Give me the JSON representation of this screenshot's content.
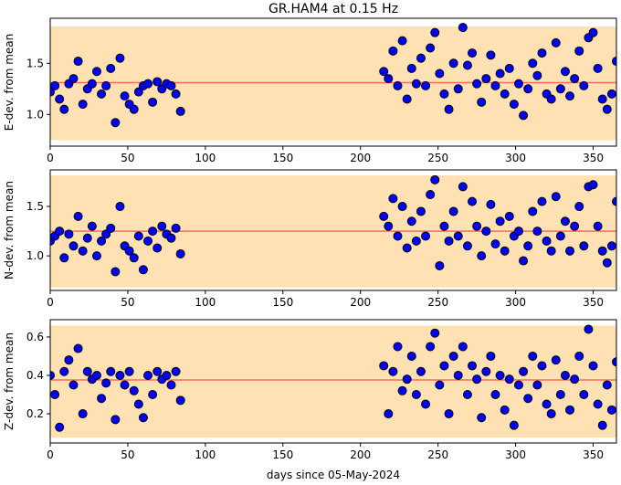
{
  "title": "GR.HAM4 at 0.15 Hz",
  "xlabel": "days since 05-May-2024",
  "chart_data": [
    {
      "type": "scatter",
      "ylabel": "E-dev. from mean",
      "color": "#0000ff",
      "edgecolor": "#000000",
      "band_color": "#ffe1b3",
      "mean_color": "#ff6b5e",
      "xlim": [
        0,
        365
      ],
      "xticks": [
        0,
        50,
        100,
        150,
        200,
        250,
        300,
        350
      ],
      "ylim": [
        0.69,
        1.94
      ],
      "yticks": [
        {
          "value": 1,
          "label": "1.0"
        },
        1.5
      ],
      "band": [
        0.75,
        1.86
      ],
      "mean": 1.31,
      "x": [
        0,
        3,
        6,
        9,
        12,
        15,
        18,
        21,
        24,
        27,
        30,
        33,
        36,
        39,
        42,
        45,
        48,
        51,
        54,
        57,
        60,
        63,
        66,
        69,
        72,
        75,
        78,
        81,
        84,
        215,
        218,
        221,
        224,
        227,
        230,
        233,
        236,
        239,
        242,
        245,
        248,
        251,
        254,
        257,
        260,
        263,
        266,
        269,
        272,
        275,
        278,
        281,
        284,
        287,
        290,
        293,
        296,
        299,
        302,
        305,
        308,
        311,
        314,
        317,
        320,
        323,
        326,
        329,
        332,
        335,
        338,
        341,
        344,
        347,
        350,
        353,
        356,
        359,
        362,
        365
      ],
      "values": [
        1.22,
        1.28,
        1.15,
        1.05,
        1.3,
        1.35,
        1.52,
        1.1,
        1.25,
        1.3,
        1.42,
        1.2,
        1.28,
        1.45,
        0.92,
        1.55,
        1.18,
        1.1,
        1.05,
        1.22,
        1.28,
        1.3,
        1.12,
        1.32,
        1.25,
        1.3,
        1.28,
        1.2,
        1.03,
        1.42,
        1.35,
        1.62,
        1.28,
        1.72,
        1.15,
        1.45,
        1.3,
        1.55,
        1.28,
        1.65,
        1.8,
        1.4,
        1.2,
        1.05,
        1.5,
        1.25,
        1.85,
        1.48,
        1.6,
        1.3,
        1.12,
        1.35,
        1.58,
        1.28,
        1.4,
        1.2,
        1.45,
        1.1,
        1.3,
        0.99,
        1.25,
        1.5,
        1.38,
        1.6,
        1.2,
        1.15,
        1.7,
        1.25,
        1.42,
        1.18,
        1.35,
        1.62,
        1.28,
        1.75,
        1.8,
        1.45,
        1.15,
        1.05,
        1.2,
        1.52
      ]
    },
    {
      "type": "scatter",
      "ylabel": "N-dev. from mean",
      "color": "#0000ff",
      "edgecolor": "#000000",
      "band_color": "#ffe1b3",
      "mean_color": "#ff6b5e",
      "xlim": [
        0,
        365
      ],
      "xticks": [
        0,
        50,
        100,
        150,
        200,
        250,
        300,
        350
      ],
      "ylim": [
        0.65,
        1.87
      ],
      "yticks": [
        {
          "value": 1,
          "label": "1.0"
        },
        1.5
      ],
      "band": [
        0.68,
        1.815
      ],
      "mean": 1.25,
      "x": [
        0,
        3,
        6,
        9,
        12,
        15,
        18,
        21,
        24,
        27,
        30,
        33,
        36,
        39,
        42,
        45,
        48,
        51,
        54,
        57,
        60,
        63,
        66,
        69,
        72,
        75,
        78,
        81,
        84,
        215,
        218,
        221,
        224,
        227,
        230,
        233,
        236,
        239,
        242,
        245,
        248,
        251,
        254,
        257,
        260,
        263,
        266,
        269,
        272,
        275,
        278,
        281,
        284,
        287,
        290,
        293,
        296,
        299,
        302,
        305,
        308,
        311,
        314,
        317,
        320,
        323,
        326,
        329,
        332,
        335,
        338,
        341,
        344,
        347,
        350,
        353,
        356,
        359,
        362,
        365
      ],
      "values": [
        1.15,
        1.2,
        1.25,
        0.98,
        1.22,
        1.1,
        1.4,
        1.05,
        1.18,
        1.3,
        1.0,
        1.15,
        1.22,
        1.28,
        0.84,
        1.5,
        1.1,
        1.05,
        0.98,
        1.2,
        0.86,
        1.15,
        1.25,
        1.08,
        1.3,
        1.22,
        1.18,
        1.28,
        1.02,
        1.4,
        1.3,
        1.58,
        1.2,
        1.5,
        1.08,
        1.35,
        1.15,
        1.45,
        1.2,
        1.62,
        1.77,
        0.9,
        1.3,
        1.15,
        1.45,
        1.2,
        1.7,
        1.1,
        1.55,
        1.3,
        1.0,
        1.25,
        1.52,
        1.12,
        1.35,
        1.05,
        1.4,
        1.2,
        1.25,
        0.95,
        1.1,
        1.45,
        1.25,
        1.55,
        1.15,
        1.05,
        1.6,
        1.2,
        1.35,
        1.05,
        1.3,
        1.5,
        1.1,
        1.7,
        1.72,
        1.3,
        1.05,
        0.93,
        1.1,
        1.55
      ]
    },
    {
      "type": "scatter",
      "ylabel": "Z-dev. from mean",
      "color": "#0000ff",
      "edgecolor": "#000000",
      "band_color": "#ffe1b3",
      "mean_color": "#ff6b5e",
      "xlim": [
        0,
        365
      ],
      "xticks": [
        0,
        50,
        100,
        150,
        200,
        250,
        300,
        350
      ],
      "ylim": [
        0.048,
        0.69
      ],
      "yticks": [
        0.2,
        0.4,
        0.6
      ],
      "band": [
        0.076,
        0.66
      ],
      "mean": 0.376,
      "x": [
        0,
        3,
        6,
        9,
        12,
        15,
        18,
        21,
        24,
        27,
        30,
        33,
        36,
        39,
        42,
        45,
        48,
        51,
        54,
        57,
        60,
        63,
        66,
        69,
        72,
        75,
        78,
        81,
        84,
        215,
        218,
        221,
        224,
        227,
        230,
        233,
        236,
        239,
        242,
        245,
        248,
        251,
        254,
        257,
        260,
        263,
        266,
        269,
        272,
        275,
        278,
        281,
        284,
        287,
        290,
        293,
        296,
        299,
        302,
        305,
        308,
        311,
        314,
        317,
        320,
        323,
        326,
        329,
        332,
        335,
        338,
        341,
        344,
        347,
        350,
        353,
        356,
        359,
        362,
        365
      ],
      "values": [
        0.4,
        0.3,
        0.13,
        0.42,
        0.48,
        0.35,
        0.54,
        0.2,
        0.42,
        0.38,
        0.4,
        0.28,
        0.36,
        0.42,
        0.17,
        0.4,
        0.35,
        0.42,
        0.32,
        0.25,
        0.18,
        0.4,
        0.3,
        0.42,
        0.38,
        0.4,
        0.35,
        0.42,
        0.27,
        0.45,
        0.2,
        0.42,
        0.55,
        0.32,
        0.38,
        0.5,
        0.3,
        0.42,
        0.25,
        0.55,
        0.62,
        0.35,
        0.45,
        0.2,
        0.5,
        0.4,
        0.55,
        0.3,
        0.45,
        0.38,
        0.18,
        0.42,
        0.5,
        0.3,
        0.4,
        0.22,
        0.38,
        0.14,
        0.35,
        0.42,
        0.28,
        0.5,
        0.35,
        0.45,
        0.25,
        0.2,
        0.48,
        0.3,
        0.4,
        0.22,
        0.38,
        0.5,
        0.3,
        0.64,
        0.45,
        0.25,
        0.14,
        0.35,
        0.22,
        0.47
      ]
    }
  ]
}
